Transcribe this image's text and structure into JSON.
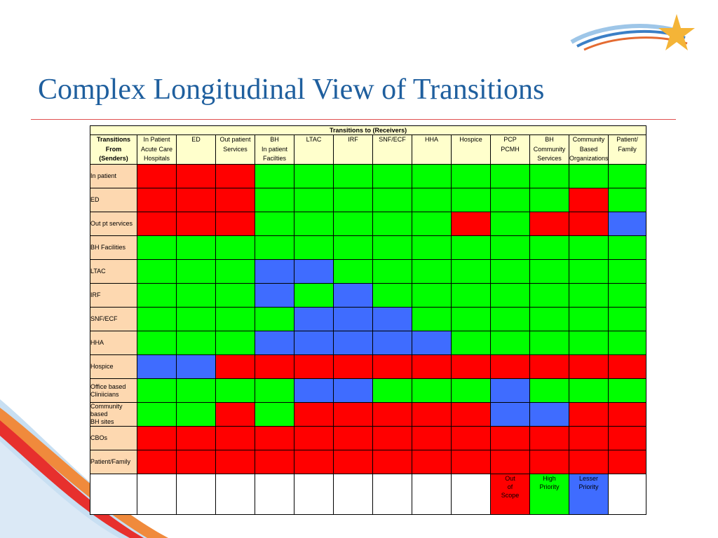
{
  "slide": {
    "title": "Complex Longitudinal View of Transitions"
  },
  "matrix": {
    "title": "Transitions to (Receivers)",
    "from_header": [
      "Transitions",
      "From",
      "(Senders)"
    ],
    "receivers": [
      [
        "In Patient",
        "Acute Care",
        "Hospitals"
      ],
      [
        "ED"
      ],
      [
        "Out patient",
        "Services"
      ],
      [
        "BH",
        "In patient",
        "Facilties"
      ],
      [
        "LTAC"
      ],
      [
        "IRF"
      ],
      [
        "SNF/ECF"
      ],
      [
        "HHA"
      ],
      [
        "Hospice"
      ],
      [
        "PCP",
        "PCMH"
      ],
      [
        "BH",
        "Community",
        "Services"
      ],
      [
        "Community",
        "Based",
        "Organizations"
      ],
      [
        "Patient/",
        "Family"
      ]
    ],
    "rows": [
      {
        "sender": [
          "In patient"
        ],
        "cells": [
          "R",
          "R",
          "R",
          "G",
          "G",
          "G",
          "G",
          "G",
          "G",
          "G",
          "G",
          "G",
          "G"
        ]
      },
      {
        "sender": [
          "ED"
        ],
        "cells": [
          "R",
          "R",
          "R",
          "G",
          "G",
          "G",
          "G",
          "G",
          "G",
          "G",
          "G",
          "R",
          "G"
        ]
      },
      {
        "sender": [
          "Out pt services"
        ],
        "cells": [
          "R",
          "R",
          "R",
          "G",
          "G",
          "G",
          "G",
          "G",
          "R",
          "G",
          "R",
          "R",
          "B"
        ]
      },
      {
        "sender": [
          "BH Facilities"
        ],
        "cells": [
          "G",
          "G",
          "G",
          "G",
          "G",
          "G",
          "G",
          "G",
          "G",
          "G",
          "G",
          "G",
          "G"
        ]
      },
      {
        "sender": [
          "LTAC"
        ],
        "cells": [
          "G",
          "G",
          "G",
          "B",
          "B",
          "G",
          "G",
          "G",
          "G",
          "G",
          "G",
          "G",
          "G"
        ]
      },
      {
        "sender": [
          "IRF"
        ],
        "cells": [
          "G",
          "G",
          "G",
          "B",
          "G",
          "B",
          "G",
          "G",
          "G",
          "G",
          "G",
          "G",
          "G"
        ]
      },
      {
        "sender": [
          "SNF/ECF"
        ],
        "cells": [
          "G",
          "G",
          "G",
          "G",
          "B",
          "B",
          "B",
          "G",
          "G",
          "G",
          "G",
          "G",
          "G"
        ]
      },
      {
        "sender": [
          "HHA"
        ],
        "cells": [
          "G",
          "G",
          "G",
          "B",
          "B",
          "B",
          "B",
          "B",
          "G",
          "G",
          "G",
          "G",
          "G"
        ]
      },
      {
        "sender": [
          "Hospice"
        ],
        "cells": [
          "B",
          "B",
          "R",
          "R",
          "R",
          "R",
          "R",
          "R",
          "R",
          "R",
          "R",
          "R",
          "R"
        ]
      },
      {
        "sender": [
          "Office based",
          "Cliniicians"
        ],
        "cells": [
          "G",
          "G",
          "G",
          "G",
          "B",
          "B",
          "G",
          "G",
          "G",
          "B",
          "G",
          "G",
          "G"
        ]
      },
      {
        "sender": [
          "Community",
          "based",
          "BH sites"
        ],
        "cells": [
          "G",
          "G",
          "R",
          "G",
          "R",
          "R",
          "R",
          "R",
          "R",
          "B",
          "B",
          "R",
          "R"
        ]
      },
      {
        "sender": [
          "CBOs"
        ],
        "cells": [
          "R",
          "R",
          "R",
          "R",
          "R",
          "R",
          "R",
          "R",
          "R",
          "R",
          "R",
          "R",
          "R"
        ]
      },
      {
        "sender": [
          "Patient/Family"
        ],
        "cells": [
          "R",
          "R",
          "R",
          "R",
          "R",
          "R",
          "R",
          "R",
          "R",
          "R",
          "R",
          "R",
          "R"
        ]
      }
    ],
    "legend": [
      {
        "key": "R",
        "lines": [
          "Out",
          "of",
          "Scope"
        ]
      },
      {
        "key": "G",
        "lines": [
          "High",
          "Priority"
        ]
      },
      {
        "key": "B",
        "lines": [
          "Lesser",
          "Priority"
        ]
      }
    ],
    "colors": {
      "R": "#ff0000",
      "G": "#00ff00",
      "B": "#3f6cff",
      "label_bg": "#fdd8b0",
      "header_bg": "#ffffcc"
    }
  }
}
